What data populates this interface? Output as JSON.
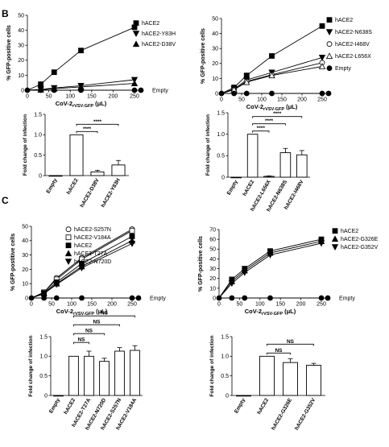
{
  "panel_labels": [
    "B",
    "C"
  ],
  "chart_data": [
    {
      "panel": "B",
      "type": "line",
      "xlabel": "CoV-2",
      "xlabel_sub": "rVSV-GFP",
      "xlabel_unit": "(μL)",
      "ylabel": "% GFP-positive cells",
      "x": [
        0,
        31.25,
        62.5,
        125,
        250
      ],
      "xlim": [
        0,
        250
      ],
      "ylim": [
        0,
        50
      ],
      "xticks": [
        0,
        50,
        100,
        150,
        200,
        250
      ],
      "yticks": [
        0,
        10,
        20,
        30,
        40,
        50
      ],
      "legend": "right",
      "series": [
        {
          "name": "hACE2",
          "marker": "square",
          "values": [
            0,
            4,
            12,
            26.5,
            42
          ]
        },
        {
          "name": "hACE2-Y83H",
          "marker": "tri-down",
          "values": [
            0,
            0.5,
            1.5,
            3,
            7
          ]
        },
        {
          "name": "hACE2-D38V",
          "marker": "tri-up",
          "values": [
            0,
            0.3,
            1,
            2.2,
            4.5
          ]
        },
        {
          "name": "Empty",
          "marker": "circle",
          "values": [
            0,
            0,
            0,
            0,
            0
          ]
        }
      ]
    },
    {
      "panel": "B",
      "type": "line",
      "xlabel": "CoV-2",
      "xlabel_sub": "rVSV-GFP",
      "xlabel_unit": "(μL)",
      "ylabel": "% GFP-positive cells",
      "x": [
        0,
        31.25,
        62.5,
        125,
        250
      ],
      "xlim": [
        0,
        250
      ],
      "ylim": [
        0,
        50
      ],
      "xticks": [
        0,
        50,
        100,
        150,
        200,
        250
      ],
      "yticks": [
        0,
        10,
        20,
        30,
        40,
        50
      ],
      "legend": "right",
      "series": [
        {
          "name": "hACE2",
          "marker": "square",
          "values": [
            0,
            4,
            12,
            25,
            45
          ]
        },
        {
          "name": "hACE2-N638S",
          "marker": "tri-down",
          "values": [
            0,
            3,
            9,
            14,
            24
          ]
        },
        {
          "name": "hACE2-I468V",
          "marker": "circle-open",
          "values": [
            0,
            2.5,
            8,
            12.5,
            20.5
          ]
        },
        {
          "name": "hACE2-L656X",
          "marker": "tri-up-open",
          "values": [
            0,
            2.5,
            7.5,
            12,
            18
          ]
        },
        {
          "name": "Empty",
          "marker": "circle",
          "values": [
            0,
            0,
            0,
            0,
            0
          ]
        }
      ]
    },
    {
      "panel": "B",
      "type": "bar",
      "ylabel": "Fold change of infection",
      "categories": [
        "Empty",
        "hACE2",
        "hACE2-D38V",
        "hACE2-Y83H"
      ],
      "values": [
        0,
        1.0,
        0.09,
        0.26
      ],
      "errors": [
        0,
        0,
        0.04,
        0.11
      ],
      "ylim": [
        0,
        1.5
      ],
      "yticks": [
        0,
        0.5,
        1.0,
        1.5
      ],
      "ytick_labels": [
        "0",
        "0.5",
        "1.0",
        "1.5"
      ],
      "significance": [
        {
          "from": 1,
          "to": 2,
          "label": "****"
        },
        {
          "from": 1,
          "to": 3,
          "label": "****"
        }
      ]
    },
    {
      "panel": "B",
      "type": "bar",
      "ylabel": "Fold change of infection",
      "categories": [
        "Empty",
        "hACE2",
        "hACE2-L656X",
        "hACE2-N638S",
        "hACE2-I468V"
      ],
      "values": [
        0,
        1.0,
        0.02,
        0.57,
        0.52
      ],
      "errors": [
        0,
        0,
        0.01,
        0.1,
        0.1
      ],
      "ylim": [
        0,
        1.5
      ],
      "yticks": [
        0,
        0.5,
        1.0,
        1.5
      ],
      "ytick_labels": [
        "0",
        "0.5",
        "1.0",
        "1.5"
      ],
      "significance": [
        {
          "from": 1,
          "to": 2,
          "label": "****"
        },
        {
          "from": 1,
          "to": 3,
          "label": "****"
        },
        {
          "from": 1,
          "to": 4,
          "label": "****"
        }
      ]
    },
    {
      "panel": "C",
      "type": "line",
      "xlabel": "CoV-2",
      "xlabel_sub": "rVSV-GFP",
      "xlabel_unit": "(μL)",
      "ylabel": "% GFP-postitive cells",
      "x": [
        0,
        31.25,
        62.5,
        125,
        250
      ],
      "xlim": [
        0,
        250
      ],
      "ylim": [
        0,
        50
      ],
      "xticks": [
        0,
        50,
        100,
        150,
        200,
        250
      ],
      "yticks": [
        0,
        10,
        20,
        30,
        40,
        50
      ],
      "legend": "top-left",
      "series": [
        {
          "name": "hACE2-S257N",
          "marker": "circle-open",
          "values": [
            0,
            4,
            14,
            28,
            48
          ]
        },
        {
          "name": "hACE2-V184A",
          "marker": "square-open",
          "values": [
            0,
            4,
            13,
            27,
            47
          ]
        },
        {
          "name": "hACE2",
          "marker": "square",
          "values": [
            0,
            3.5,
            11,
            24,
            43
          ]
        },
        {
          "name": "hACE2-T27A",
          "marker": "tri-up",
          "values": [
            0,
            3,
            10,
            22,
            40
          ]
        },
        {
          "name": "hACE2-N720D",
          "marker": "tri-down",
          "values": [
            0,
            3,
            9.5,
            21,
            38
          ]
        },
        {
          "name": "Empty",
          "marker": "circle",
          "values": [
            0,
            0,
            0,
            0,
            0
          ]
        }
      ]
    },
    {
      "panel": "C",
      "type": "line",
      "xlabel": "CoV-2",
      "xlabel_sub": "rVSV-GFP",
      "xlabel_unit": "(μL)",
      "ylabel": "% GFP-positive cells",
      "x": [
        0,
        31.25,
        62.5,
        125,
        250
      ],
      "xlim": [
        0,
        250
      ],
      "ylim": [
        0,
        70
      ],
      "xticks": [
        0,
        50,
        100,
        150,
        200,
        250
      ],
      "yticks": [
        0,
        10,
        20,
        30,
        40,
        50,
        60,
        70
      ],
      "legend": "top-right",
      "series": [
        {
          "name": "hACE2",
          "marker": "square",
          "values": [
            0,
            19,
            30,
            48,
            60
          ]
        },
        {
          "name": "hACE2-G326E",
          "marker": "tri-up",
          "values": [
            0,
            17,
            28,
            46,
            58
          ]
        },
        {
          "name": "hACE2-G352V",
          "marker": "tri-down",
          "values": [
            0,
            15,
            26,
            44,
            56
          ]
        },
        {
          "name": "Empty",
          "marker": "circle",
          "values": [
            0,
            0,
            0,
            0,
            0
          ]
        }
      ]
    },
    {
      "panel": "C",
      "type": "bar",
      "ylabel": "Fold change of infection",
      "categories": [
        "Empty",
        "hACE2",
        "hACE2-T27A",
        "hACE2-N720D",
        "hACE2-S257N",
        "hACE2-V184A"
      ],
      "values": [
        0,
        1.0,
        1.0,
        0.87,
        1.13,
        1.15
      ],
      "errors": [
        0,
        0,
        0.13,
        0.08,
        0.09,
        0.12
      ],
      "ylim": [
        0,
        1.5
      ],
      "yticks": [
        0,
        0.5,
        1.0,
        1.5
      ],
      "ytick_labels": [
        "0",
        "0.5",
        "1.0",
        "1.5"
      ],
      "significance": [
        {
          "from": 1,
          "to": 2,
          "label": "NS"
        },
        {
          "from": 1,
          "to": 3,
          "label": "NS"
        },
        {
          "from": 1,
          "to": 4,
          "label": "NS"
        },
        {
          "from": 1,
          "to": 5,
          "label": "NS"
        }
      ]
    },
    {
      "panel": "C",
      "type": "bar",
      "ylabel": "Fold change of infection",
      "categories": [
        "Empty",
        "hACE2",
        "hACE2-G326E",
        "hACE2-G352V"
      ],
      "values": [
        0,
        1.0,
        0.84,
        0.77
      ],
      "errors": [
        0,
        0,
        0.1,
        0.05
      ],
      "ylim": [
        0,
        1.5
      ],
      "yticks": [
        0,
        0.5,
        1.0,
        1.5
      ],
      "ytick_labels": [
        "0",
        "0.5",
        "1.0",
        "1.5"
      ],
      "significance": [
        {
          "from": 1,
          "to": 2,
          "label": "NS"
        },
        {
          "from": 1,
          "to": 3,
          "label": "NS"
        }
      ]
    }
  ]
}
